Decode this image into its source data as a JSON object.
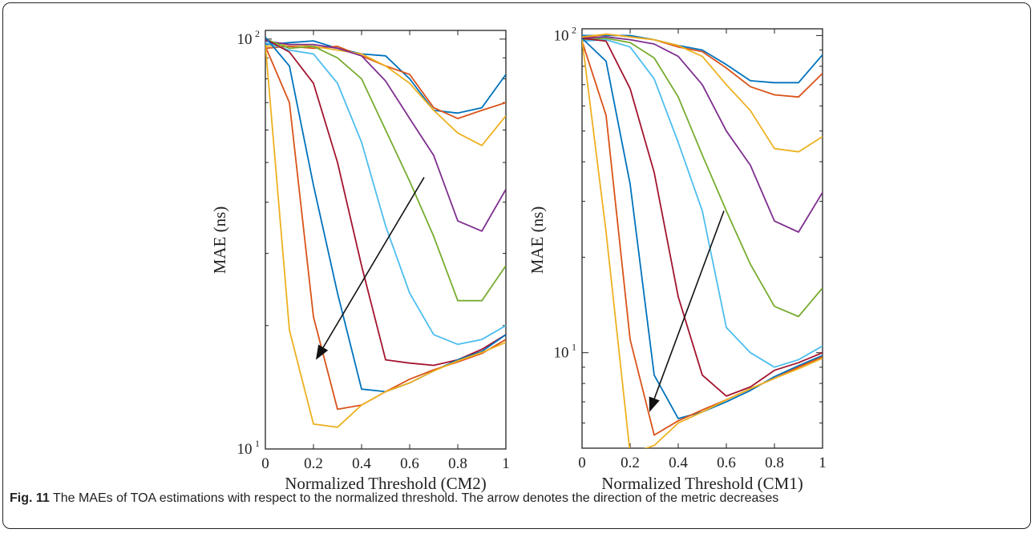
{
  "caption": {
    "label": "Fig. 11",
    "text": " The MAEs of TOA estimations with respect to the normalized threshold. The arrow denotes the direction of the metric decreases"
  },
  "colors": [
    "#0072BD",
    "#D95319",
    "#EDB120",
    "#7E2F8E",
    "#77AC30",
    "#4DBEEE",
    "#A2142F",
    "#0072BD",
    "#D95319",
    "#EDB120"
  ],
  "chart_data": [
    {
      "type": "line",
      "xlabel": "Normalized Threshold (CM2)",
      "ylabel": "MAE (ns)",
      "yscale": "log",
      "xlim": [
        0,
        1
      ],
      "ylim": [
        10,
        105
      ],
      "x_ticks": [
        "0",
        "0.2",
        "0.4",
        "0.6",
        "0.8",
        "1"
      ],
      "y_ticks": [
        {
          "base": "10",
          "exp": "1",
          "value": 10
        },
        {
          "base": "10",
          "exp": "2",
          "value": 100
        }
      ],
      "x": [
        0,
        0.1,
        0.2,
        0.3,
        0.4,
        0.5,
        0.6,
        0.7,
        0.8,
        0.9,
        1.0
      ],
      "annotations": [
        {
          "type": "arrow",
          "from": [
            0.66,
            46
          ],
          "to": [
            0.21,
            16.5
          ],
          "note": "direction of the metric decreases"
        }
      ],
      "series": [
        {
          "values": [
            97,
            98,
            99,
            95,
            92,
            91,
            80,
            67,
            66,
            68,
            82
          ]
        },
        {
          "values": [
            95,
            96,
            95,
            96,
            91,
            86,
            82,
            68,
            64,
            67,
            70
          ]
        },
        {
          "values": [
            96,
            97,
            96,
            94,
            92,
            86,
            78,
            67,
            59,
            55,
            65
          ]
        },
        {
          "values": [
            99,
            97,
            97,
            95,
            91,
            79,
            64,
            52,
            36,
            34,
            43
          ]
        },
        {
          "values": [
            100,
            95,
            96,
            90,
            80,
            60,
            45,
            33,
            23,
            23,
            28
          ]
        },
        {
          "values": [
            98,
            94,
            92,
            78,
            56,
            35,
            24,
            19,
            18,
            18.5,
            20
          ]
        },
        {
          "values": [
            100,
            93,
            78,
            50,
            28,
            16.5,
            16.2,
            16,
            16.5,
            17.5,
            19
          ]
        },
        {
          "values": [
            101,
            86,
            44,
            24,
            14,
            13.8,
            14.5,
            15.5,
            16.5,
            17.3,
            19
          ]
        },
        {
          "values": [
            96,
            70,
            21,
            12.5,
            12.8,
            13.8,
            14.8,
            15.6,
            16.3,
            17.1,
            18.5
          ]
        },
        {
          "values": [
            97,
            19.5,
            11.5,
            11.3,
            12.8,
            13.8,
            14.5,
            15.5,
            16.4,
            17.2,
            18.2
          ]
        }
      ]
    },
    {
      "type": "line",
      "xlabel": "Normalized Threshold (CM1)",
      "ylabel": "MAE (ns)",
      "yscale": "log",
      "xlim": [
        0,
        1
      ],
      "ylim": [
        5,
        105
      ],
      "x_ticks": [
        "0",
        "0.2",
        "0.4",
        "0.6",
        "0.8",
        "1"
      ],
      "y_ticks": [
        {
          "base": "10",
          "exp": "1",
          "value": 10
        },
        {
          "base": "10",
          "exp": "2",
          "value": 100
        }
      ],
      "x": [
        0,
        0.1,
        0.2,
        0.3,
        0.4,
        0.5,
        0.6,
        0.7,
        0.8,
        0.9,
        1.0
      ],
      "annotations": [
        {
          "type": "arrow",
          "from": [
            0.59,
            28
          ],
          "to": [
            0.28,
            6.5
          ],
          "note": "direction of the metric decreases"
        }
      ],
      "series": [
        {
          "values": [
            100,
            100,
            100,
            97,
            93,
            90,
            81,
            72,
            71,
            71,
            87
          ]
        },
        {
          "values": [
            98,
            101,
            99,
            97,
            92,
            89,
            79,
            69,
            65,
            64,
            76
          ]
        },
        {
          "values": [
            99,
            101,
            99,
            97,
            93,
            86,
            70,
            58,
            44,
            43,
            48
          ]
        },
        {
          "values": [
            98,
            99,
            97,
            94,
            86,
            70,
            50,
            39,
            26,
            24,
            32
          ]
        },
        {
          "values": [
            97,
            98,
            95,
            85,
            64,
            42,
            28,
            19,
            14,
            13,
            16
          ]
        },
        {
          "values": [
            96,
            97,
            92,
            73,
            46,
            28,
            12,
            10,
            9,
            9.5,
            10.5
          ]
        },
        {
          "values": [
            98,
            96,
            68,
            37,
            15,
            8.5,
            7.3,
            7.8,
            8.8,
            9.3,
            10
          ]
        },
        {
          "values": [
            98,
            83,
            34,
            8.5,
            6.2,
            6.5,
            7,
            7.6,
            8.4,
            9.1,
            9.8
          ]
        },
        {
          "values": [
            96,
            56,
            11,
            5.5,
            6.1,
            6.6,
            7.1,
            7.7,
            8.3,
            9,
            9.7
          ]
        },
        {
          "values": [
            97,
            24,
            4.8,
            5.1,
            6,
            6.5,
            7.1,
            7.7,
            8.3,
            8.9,
            9.6
          ]
        }
      ]
    }
  ]
}
